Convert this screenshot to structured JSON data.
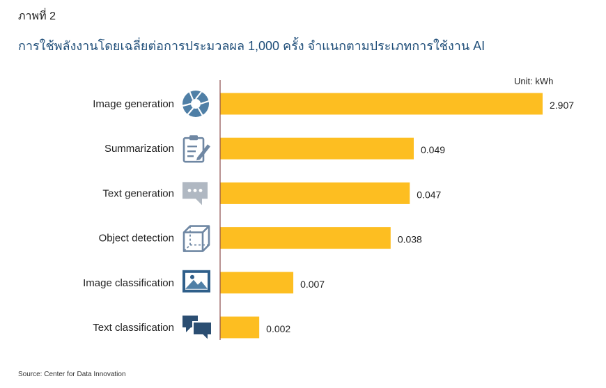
{
  "figure_label": "ภาพที่ 2",
  "colors": {
    "bar": "#FDBE21",
    "axis": "#8a4b4b",
    "icon": "#4f7fa6",
    "icon_light": "#b0b8c2",
    "title": "#1f4e79"
  },
  "chart_data": {
    "type": "bar",
    "orientation": "horizontal",
    "title": "การใช้พลังงานโดยเฉลี่ยต่อการประมวลผล 1,000 ครั้ง จำแนกตามประเภทการใช้งาน AI",
    "unit_label": "Unit: kWh",
    "source": "Source: Center for Data Innovation",
    "xlim": [
      0,
      2.907
    ],
    "grid": false,
    "categories": [
      {
        "label": "Image generation",
        "value": 2.907,
        "value_label": "2.907",
        "icon": "camera-aperture-icon"
      },
      {
        "label": "Summarization",
        "value": 0.049,
        "value_label": "0.049",
        "icon": "clipboard-pen-icon"
      },
      {
        "label": "Text generation",
        "value": 0.047,
        "value_label": "0.047",
        "icon": "chat-bubble-dots-icon"
      },
      {
        "label": "Object detection",
        "value": 0.038,
        "value_label": "0.038",
        "icon": "cube-icon"
      },
      {
        "label": "Image classification",
        "value": 0.007,
        "value_label": "0.007",
        "icon": "landscape-image-icon"
      },
      {
        "label": "Text classification",
        "value": 0.002,
        "value_label": "0.002",
        "icon": "chat-bubbles-icon"
      }
    ]
  }
}
